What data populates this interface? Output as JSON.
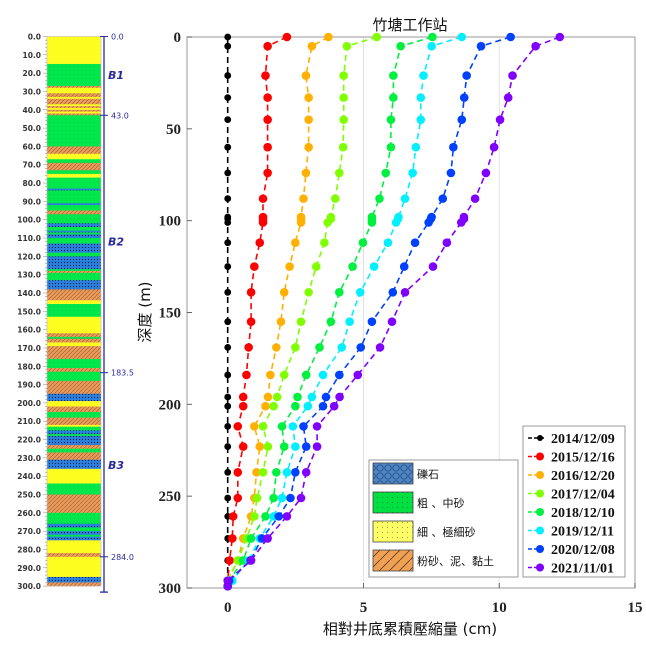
{
  "chart_data": {
    "type": "line",
    "title": "竹塘工作站",
    "xlabel": "相對井底累積壓縮量 (cm)",
    "ylabel": "深度 (m)",
    "xlim": [
      -1.5,
      15
    ],
    "ylim": [
      0,
      300
    ],
    "y_inverted": true,
    "xticks": [
      "0",
      "5",
      "10",
      "15"
    ],
    "yticks": [
      "0",
      "50",
      "100",
      "150",
      "200",
      "250",
      "300"
    ],
    "grid": "x-only",
    "legend_placement": "bottom-right",
    "line_style": "dashed with circle markers",
    "depths": [
      0,
      5,
      21,
      33,
      45,
      60,
      74,
      88,
      98,
      99,
      101,
      112,
      125,
      139,
      155,
      169,
      184,
      196,
      201,
      212,
      223,
      237,
      251,
      261,
      273,
      285,
      296,
      299
    ],
    "series": [
      {
        "name": "2014/12/09",
        "color": "#000000",
        "values": [
          0,
          0,
          0,
          0,
          0,
          0,
          0,
          0,
          0,
          0,
          0,
          0,
          0,
          0,
          0,
          0,
          0,
          0,
          0,
          0,
          0,
          0,
          0,
          0,
          0,
          0,
          0,
          0
        ]
      },
      {
        "name": "2015/12/16",
        "color": "#ff0000",
        "values": [
          2.18,
          1.47,
          1.39,
          1.47,
          1.47,
          1.47,
          1.47,
          1.3,
          1.3,
          1.3,
          1.3,
          1.18,
          0.98,
          0.86,
          0.86,
          0.77,
          0.69,
          0.57,
          0.57,
          0.37,
          0.57,
          0.37,
          0.37,
          0.2,
          0.17,
          0.07,
          0,
          0
        ]
      },
      {
        "name": "2016/12/20",
        "color": "#ffb000",
        "values": [
          3.71,
          3.1,
          2.88,
          2.98,
          2.98,
          2.98,
          2.88,
          2.79,
          2.7,
          2.7,
          2.7,
          2.49,
          2.28,
          2.08,
          1.96,
          1.79,
          1.57,
          1.48,
          1.39,
          0.98,
          1.18,
          1.06,
          0.98,
          0.86,
          0.57,
          0.37,
          0,
          0
        ]
      },
      {
        "name": "2017/12/04",
        "color": "#80ff00",
        "values": [
          5.49,
          4.39,
          4.27,
          4.27,
          4.27,
          4.25,
          4.11,
          3.96,
          3.8,
          3.8,
          3.68,
          3.56,
          3.26,
          2.98,
          2.7,
          2.49,
          2.08,
          1.82,
          1.69,
          1.3,
          1.48,
          1.3,
          1.08,
          0.98,
          0.69,
          0.37,
          0,
          0
        ]
      },
      {
        "name": "2018/12/10",
        "color": "#00f040",
        "values": [
          7.54,
          6.37,
          6.1,
          6.1,
          6.01,
          6.01,
          5.82,
          5.59,
          5.31,
          5.31,
          5.31,
          4.98,
          4.6,
          4.11,
          3.8,
          3.38,
          2.89,
          2.57,
          2.49,
          2.0,
          2.08,
          1.79,
          1.69,
          1.39,
          0.86,
          0.57,
          0.05,
          0
        ]
      },
      {
        "name": "2019/12/11",
        "color": "#00f0ff",
        "values": [
          8.62,
          7.51,
          7.21,
          7.11,
          7.11,
          6.93,
          6.81,
          6.53,
          6.29,
          6.27,
          6.2,
          5.9,
          5.39,
          4.88,
          4.49,
          4.2,
          3.51,
          3.1,
          2.95,
          2.4,
          2.49,
          2.18,
          2.0,
          1.69,
          1.18,
          0.77,
          0.17,
          0
        ]
      },
      {
        "name": "2020/12/08",
        "color": "#0040ff",
        "values": [
          10.42,
          9.33,
          8.8,
          8.71,
          8.62,
          8.31,
          8.22,
          7.92,
          7.51,
          7.48,
          7.4,
          6.9,
          6.5,
          6.08,
          5.31,
          4.9,
          4.11,
          3.62,
          3.51,
          2.79,
          2.89,
          2.49,
          2.31,
          1.88,
          1.26,
          0.84,
          0.05,
          0
        ]
      },
      {
        "name": "2021/11/01",
        "color": "#8000ff",
        "values": [
          12.23,
          11.34,
          10.49,
          10.33,
          10.03,
          9.81,
          9.51,
          9.11,
          8.7,
          8.7,
          8.6,
          8.07,
          7.56,
          6.53,
          6.05,
          5.61,
          4.79,
          4.12,
          3.92,
          3.29,
          3.29,
          2.89,
          2.7,
          2.18,
          1.47,
          0.86,
          0,
          0
        ]
      }
    ]
  },
  "strata_column": {
    "depth_labels": [
      "0.0",
      "10.0",
      "20.0",
      "30.0",
      "40.0",
      "50.0",
      "60.0",
      "70.0",
      "80.0",
      "90.0",
      "100.0",
      "110.0",
      "120.0",
      "130.0",
      "140.0",
      "150.0",
      "160.0",
      "170.0",
      "180.0",
      "190.0",
      "200.0",
      "210.0",
      "220.0",
      "230.0",
      "240.0",
      "250.0",
      "260.0",
      "270.0",
      "280.0",
      "290.0",
      "300.0"
    ],
    "boundary_labels": [
      {
        "depth": 0,
        "label": "0.0"
      },
      {
        "depth": 43,
        "label": "43.0"
      },
      {
        "depth": 183.5,
        "label": "183.5"
      },
      {
        "depth": 284,
        "label": "284.0"
      }
    ],
    "zones": [
      {
        "label": "B1",
        "depth": 21
      },
      {
        "label": "B2",
        "depth": 112
      },
      {
        "label": "B3",
        "depth": 234
      }
    ],
    "colors": {
      "gravel": "#2a7fe0",
      "coarse": "#00e84a",
      "fine": "#ffff20",
      "silt": "#e89a5a"
    },
    "layers": [
      [
        0,
        15,
        "fine"
      ],
      [
        15,
        27,
        "coarse"
      ],
      [
        27,
        28,
        "silt"
      ],
      [
        28,
        31,
        "fine"
      ],
      [
        31,
        33,
        "silt"
      ],
      [
        33,
        34,
        "fine"
      ],
      [
        34,
        37,
        "silt"
      ],
      [
        37,
        38,
        "fine"
      ],
      [
        38,
        39,
        "silt"
      ],
      [
        39,
        40,
        "fine"
      ],
      [
        40,
        41,
        "silt"
      ],
      [
        41,
        42,
        "fine"
      ],
      [
        42,
        43,
        "silt"
      ],
      [
        43,
        60,
        "coarse"
      ],
      [
        60,
        64,
        "silt"
      ],
      [
        64,
        67,
        "fine"
      ],
      [
        67,
        69,
        "coarse"
      ],
      [
        69,
        73,
        "silt"
      ],
      [
        73,
        75,
        "coarse"
      ],
      [
        75,
        77,
        "fine"
      ],
      [
        77,
        83,
        "coarse"
      ],
      [
        83,
        84,
        "gravel"
      ],
      [
        84,
        91,
        "coarse"
      ],
      [
        91,
        92,
        "gravel"
      ],
      [
        92,
        95,
        "coarse"
      ],
      [
        95,
        97,
        "silt"
      ],
      [
        97,
        102,
        "coarse"
      ],
      [
        102,
        104,
        "gravel"
      ],
      [
        104,
        106,
        "coarse"
      ],
      [
        106,
        107,
        "gravel"
      ],
      [
        107,
        108,
        "coarse"
      ],
      [
        108,
        110,
        "gravel"
      ],
      [
        110,
        113,
        "coarse"
      ],
      [
        113,
        118,
        "gravel"
      ],
      [
        118,
        120,
        "coarse"
      ],
      [
        120,
        127,
        "gravel"
      ],
      [
        127,
        128,
        "coarse"
      ],
      [
        128,
        129,
        "silt"
      ],
      [
        129,
        133,
        "coarse"
      ],
      [
        133,
        138,
        "gravel"
      ],
      [
        138,
        144,
        "silt"
      ],
      [
        144,
        146,
        "fine"
      ],
      [
        146,
        153,
        "coarse"
      ],
      [
        153,
        162,
        "fine"
      ],
      [
        162,
        164,
        "silt"
      ],
      [
        164,
        165,
        "coarse"
      ],
      [
        165,
        167,
        "silt"
      ],
      [
        167,
        169,
        "fine"
      ],
      [
        169,
        176,
        "silt"
      ],
      [
        176,
        181,
        "coarse"
      ],
      [
        181,
        183,
        "silt"
      ],
      [
        183,
        188,
        "coarse"
      ],
      [
        188,
        195,
        "silt"
      ],
      [
        195,
        199,
        "gravel"
      ],
      [
        199,
        202,
        "fine"
      ],
      [
        202,
        205,
        "silt"
      ],
      [
        205,
        208,
        "coarse"
      ],
      [
        208,
        212,
        "silt"
      ],
      [
        212,
        213,
        "fine"
      ],
      [
        213,
        215,
        "coarse"
      ],
      [
        215,
        217,
        "gravel"
      ],
      [
        217,
        218,
        "coarse"
      ],
      [
        218,
        223,
        "gravel"
      ],
      [
        223,
        225,
        "silt"
      ],
      [
        225,
        227,
        "coarse"
      ],
      [
        227,
        231,
        "silt"
      ],
      [
        231,
        236,
        "gravel"
      ],
      [
        236,
        244,
        "fine"
      ],
      [
        244,
        250,
        "coarse"
      ],
      [
        250,
        260,
        "silt"
      ],
      [
        260,
        266,
        "coarse"
      ],
      [
        266,
        268,
        "gravel"
      ],
      [
        268,
        270,
        "coarse"
      ],
      [
        270,
        272,
        "gravel"
      ],
      [
        272,
        273,
        "coarse"
      ],
      [
        273,
        275,
        "gravel"
      ],
      [
        275,
        282,
        "fine"
      ],
      [
        282,
        284,
        "silt"
      ],
      [
        284,
        295,
        "fine"
      ],
      [
        295,
        298,
        "gravel"
      ],
      [
        298,
        300,
        "silt"
      ]
    ]
  },
  "lithology_legend": [
    {
      "label": "礫石",
      "type": "gravel"
    },
    {
      "label": "粗 、中砂",
      "type": "coarse"
    },
    {
      "label": "細 、極細砂",
      "type": "fine"
    },
    {
      "label": "粉砂、泥、黏土",
      "type": "silt"
    }
  ]
}
